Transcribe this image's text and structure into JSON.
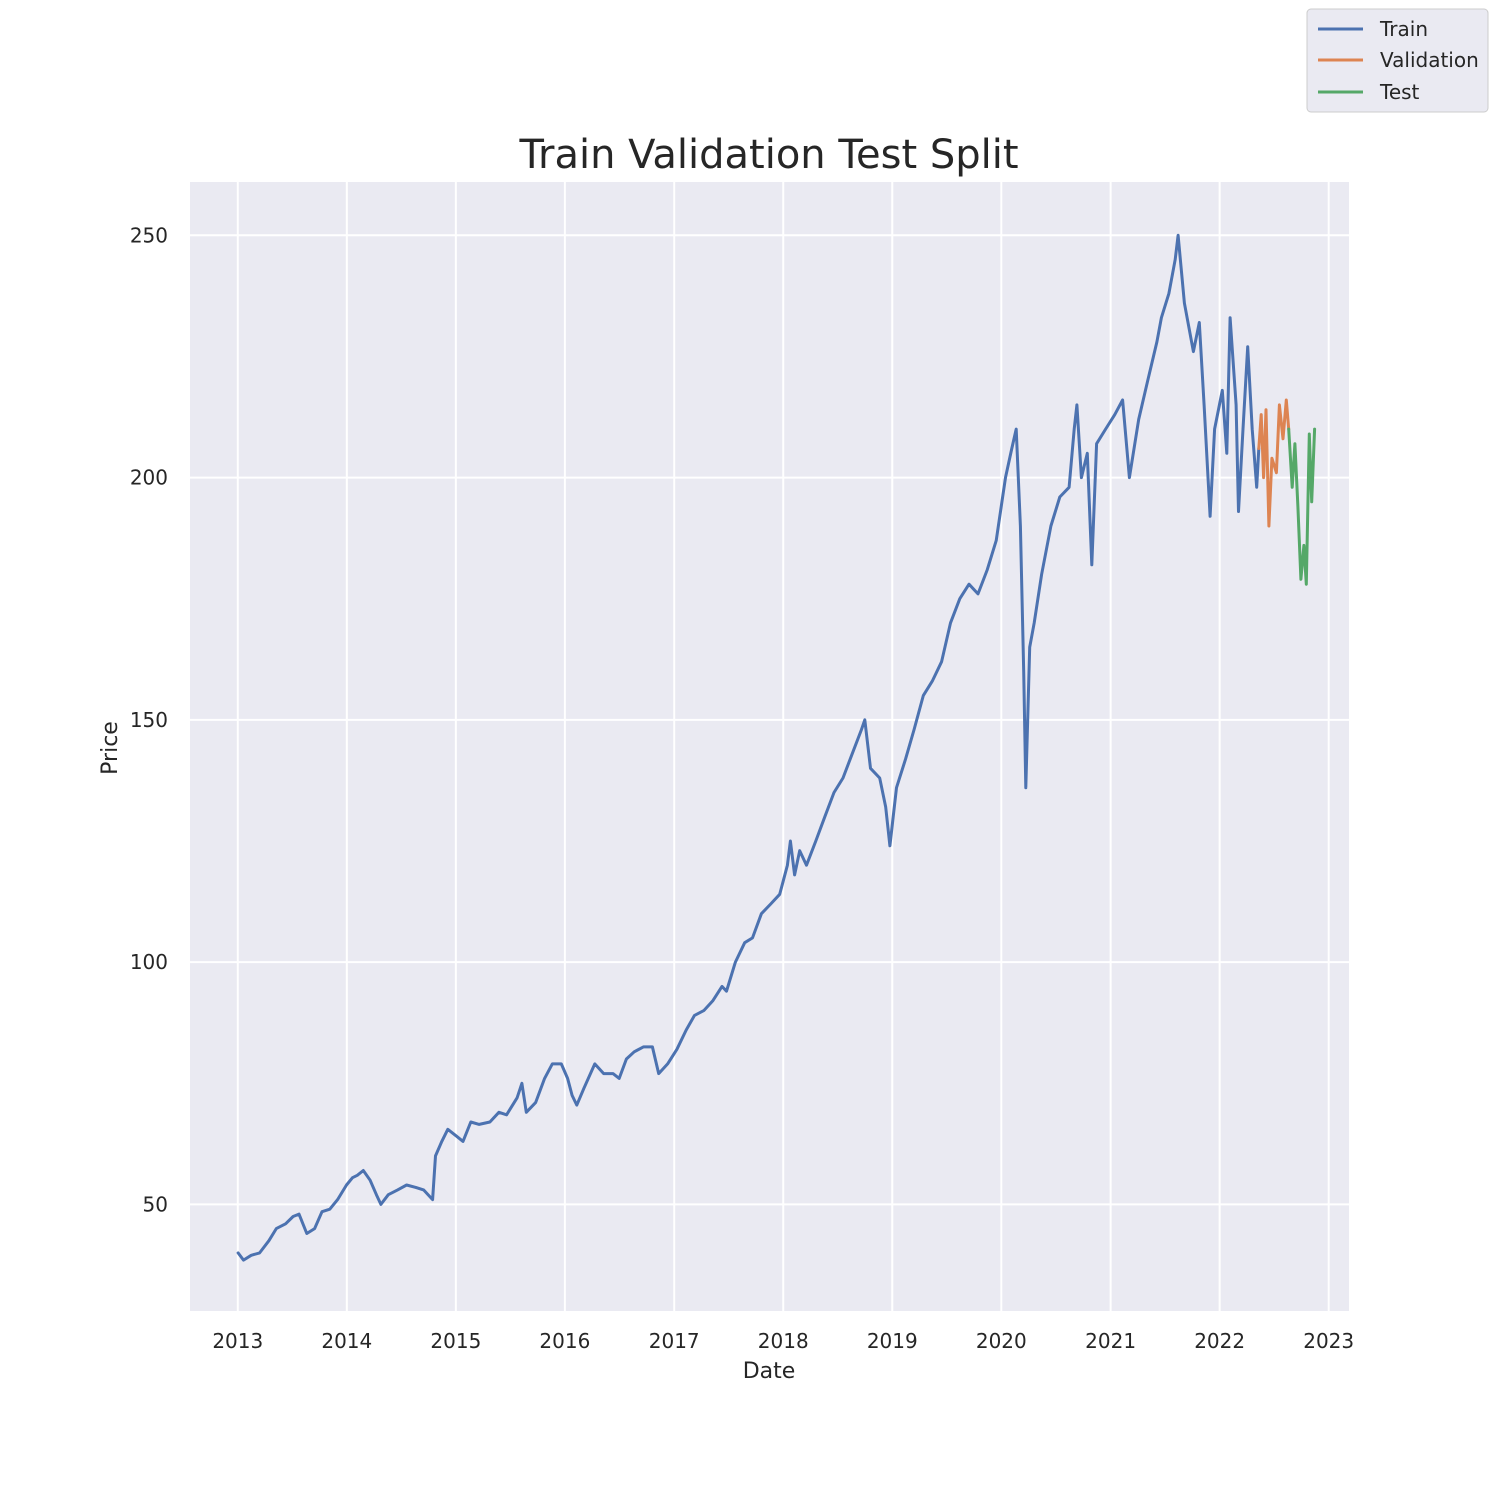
{
  "chart_data": {
    "type": "line",
    "title": "Train Validation Test Split",
    "xlabel": "Date",
    "ylabel": "Price",
    "x_ticks": [
      "2013",
      "2014",
      "2015",
      "2016",
      "2017",
      "2018",
      "2019",
      "2020",
      "2021",
      "2022",
      "2023"
    ],
    "y_ticks": [
      50,
      100,
      150,
      200,
      250
    ],
    "xlim": [
      "2012-07-25",
      "2023-03-10"
    ],
    "ylim": [
      28,
      261
    ],
    "grid": true,
    "legend_position": "top-right",
    "colors": {
      "background": "#eaeaf2",
      "grid": "#ffffff",
      "Train": "#4c72b0",
      "Validation": "#dd8452",
      "Test": "#55a868"
    },
    "series": [
      {
        "name": "Train",
        "points": [
          [
            "2013-01-02",
            40
          ],
          [
            "2013-01-20",
            38.5
          ],
          [
            "2013-02-15",
            39.5
          ],
          [
            "2013-03-15",
            40
          ],
          [
            "2013-04-15",
            42.5
          ],
          [
            "2013-05-10",
            45
          ],
          [
            "2013-06-10",
            46
          ],
          [
            "2013-07-05",
            47.5
          ],
          [
            "2013-07-25",
            48
          ],
          [
            "2013-08-20",
            44
          ],
          [
            "2013-09-15",
            45
          ],
          [
            "2013-10-10",
            48.5
          ],
          [
            "2013-11-05",
            49
          ],
          [
            "2013-12-01",
            51
          ],
          [
            "2013-12-31",
            54
          ],
          [
            "2014-01-20",
            55.5
          ],
          [
            "2014-02-05",
            56
          ],
          [
            "2014-02-25",
            57
          ],
          [
            "2014-03-20",
            55
          ],
          [
            "2014-04-10",
            52
          ],
          [
            "2014-04-25",
            50
          ],
          [
            "2014-05-20",
            52
          ],
          [
            "2014-06-20",
            53
          ],
          [
            "2014-07-20",
            54
          ],
          [
            "2014-08-20",
            53.5
          ],
          [
            "2014-09-15",
            53
          ],
          [
            "2014-10-15",
            51
          ],
          [
            "2014-10-25",
            60
          ],
          [
            "2014-11-15",
            63
          ],
          [
            "2014-12-05",
            65.5
          ],
          [
            "2015-01-05",
            64
          ],
          [
            "2015-01-25",
            63
          ],
          [
            "2015-02-20",
            67
          ],
          [
            "2015-03-20",
            66.5
          ],
          [
            "2015-04-25",
            67
          ],
          [
            "2015-05-25",
            69
          ],
          [
            "2015-06-20",
            68.5
          ],
          [
            "2015-07-25",
            72
          ],
          [
            "2015-08-10",
            75
          ],
          [
            "2015-08-25",
            69
          ],
          [
            "2015-09-25",
            71
          ],
          [
            "2015-10-25",
            76
          ],
          [
            "2015-11-20",
            79
          ],
          [
            "2015-12-20",
            79
          ],
          [
            "2016-01-10",
            76
          ],
          [
            "2016-01-25",
            72.5
          ],
          [
            "2016-02-10",
            70.5
          ],
          [
            "2016-03-05",
            74
          ],
          [
            "2016-04-10",
            79
          ],
          [
            "2016-05-10",
            77
          ],
          [
            "2016-06-10",
            77
          ],
          [
            "2016-07-01",
            76
          ],
          [
            "2016-07-25",
            80
          ],
          [
            "2016-08-20",
            81.5
          ],
          [
            "2016-09-20",
            82.5
          ],
          [
            "2016-10-20",
            82.5
          ],
          [
            "2016-11-10",
            77
          ],
          [
            "2016-12-10",
            79
          ],
          [
            "2017-01-10",
            82
          ],
          [
            "2017-02-10",
            86
          ],
          [
            "2017-03-10",
            89
          ],
          [
            "2017-04-10",
            90
          ],
          [
            "2017-05-10",
            92
          ],
          [
            "2017-06-10",
            95
          ],
          [
            "2017-06-25",
            94
          ],
          [
            "2017-07-25",
            100
          ],
          [
            "2017-08-25",
            104
          ],
          [
            "2017-09-20",
            105
          ],
          [
            "2017-10-20",
            110
          ],
          [
            "2017-11-20",
            112
          ],
          [
            "2017-12-20",
            114
          ],
          [
            "2018-01-15",
            120
          ],
          [
            "2018-01-25",
            125
          ],
          [
            "2018-02-08",
            118
          ],
          [
            "2018-02-25",
            123
          ],
          [
            "2018-03-20",
            120
          ],
          [
            "2018-04-20",
            125
          ],
          [
            "2018-05-20",
            130
          ],
          [
            "2018-06-20",
            135
          ],
          [
            "2018-07-20",
            138
          ],
          [
            "2018-08-20",
            143
          ],
          [
            "2018-09-20",
            148
          ],
          [
            "2018-10-01",
            150
          ],
          [
            "2018-10-20",
            140
          ],
          [
            "2018-11-20",
            138
          ],
          [
            "2018-12-10",
            132
          ],
          [
            "2018-12-24",
            124
          ],
          [
            "2019-01-15",
            136
          ],
          [
            "2019-02-15",
            142
          ],
          [
            "2019-03-15",
            148
          ],
          [
            "2019-04-15",
            155
          ],
          [
            "2019-05-15",
            158
          ],
          [
            "2019-06-15",
            162
          ],
          [
            "2019-07-15",
            170
          ],
          [
            "2019-08-15",
            175
          ],
          [
            "2019-09-15",
            178
          ],
          [
            "2019-10-15",
            176
          ],
          [
            "2019-11-15",
            181
          ],
          [
            "2019-12-15",
            187
          ],
          [
            "2020-01-15",
            200
          ],
          [
            "2020-02-05",
            206
          ],
          [
            "2020-02-20",
            210
          ],
          [
            "2020-03-05",
            190
          ],
          [
            "2020-03-16",
            160
          ],
          [
            "2020-03-23",
            136
          ],
          [
            "2020-04-05",
            165
          ],
          [
            "2020-04-20",
            170
          ],
          [
            "2020-05-15",
            180
          ],
          [
            "2020-06-15",
            190
          ],
          [
            "2020-07-15",
            196
          ],
          [
            "2020-08-15",
            198
          ],
          [
            "2020-09-01",
            210
          ],
          [
            "2020-09-10",
            215
          ],
          [
            "2020-09-25",
            200
          ],
          [
            "2020-10-15",
            205
          ],
          [
            "2020-10-30",
            182
          ],
          [
            "2020-11-15",
            207
          ],
          [
            "2020-12-15",
            210
          ],
          [
            "2021-01-15",
            213
          ],
          [
            "2021-02-10",
            216
          ],
          [
            "2021-03-05",
            200
          ],
          [
            "2021-04-05",
            212
          ],
          [
            "2021-05-05",
            220
          ],
          [
            "2021-06-05",
            228
          ],
          [
            "2021-06-20",
            233
          ],
          [
            "2021-07-15",
            238
          ],
          [
            "2021-08-05",
            245
          ],
          [
            "2021-08-15",
            250
          ],
          [
            "2021-09-05",
            236
          ],
          [
            "2021-10-05",
            226
          ],
          [
            "2021-10-25",
            232
          ],
          [
            "2021-11-10",
            215
          ],
          [
            "2021-11-30",
            192
          ],
          [
            "2021-12-15",
            210
          ],
          [
            "2022-01-10",
            218
          ],
          [
            "2022-01-25",
            205
          ],
          [
            "2022-02-05",
            233
          ],
          [
            "2022-02-25",
            215
          ],
          [
            "2022-03-05",
            193
          ],
          [
            "2022-03-20",
            210
          ],
          [
            "2022-04-05",
            227
          ],
          [
            "2022-04-20",
            210
          ],
          [
            "2022-05-05",
            198
          ],
          [
            "2022-05-12",
            206
          ]
        ]
      },
      {
        "name": "Validation",
        "points": [
          [
            "2022-05-12",
            206
          ],
          [
            "2022-05-20",
            213
          ],
          [
            "2022-05-28",
            200
          ],
          [
            "2022-06-05",
            214
          ],
          [
            "2022-06-15",
            190
          ],
          [
            "2022-06-25",
            204
          ],
          [
            "2022-07-10",
            201
          ],
          [
            "2022-07-20",
            215
          ],
          [
            "2022-08-01",
            208
          ],
          [
            "2022-08-12",
            216
          ],
          [
            "2022-08-20",
            210
          ]
        ]
      },
      {
        "name": "Test",
        "points": [
          [
            "2022-08-20",
            210
          ],
          [
            "2022-09-01",
            198
          ],
          [
            "2022-09-10",
            207
          ],
          [
            "2022-09-20",
            194
          ],
          [
            "2022-09-30",
            179
          ],
          [
            "2022-10-10",
            186
          ],
          [
            "2022-10-18",
            178
          ],
          [
            "2022-10-28",
            209
          ],
          [
            "2022-11-05",
            195
          ],
          [
            "2022-11-15",
            210
          ]
        ]
      }
    ]
  }
}
